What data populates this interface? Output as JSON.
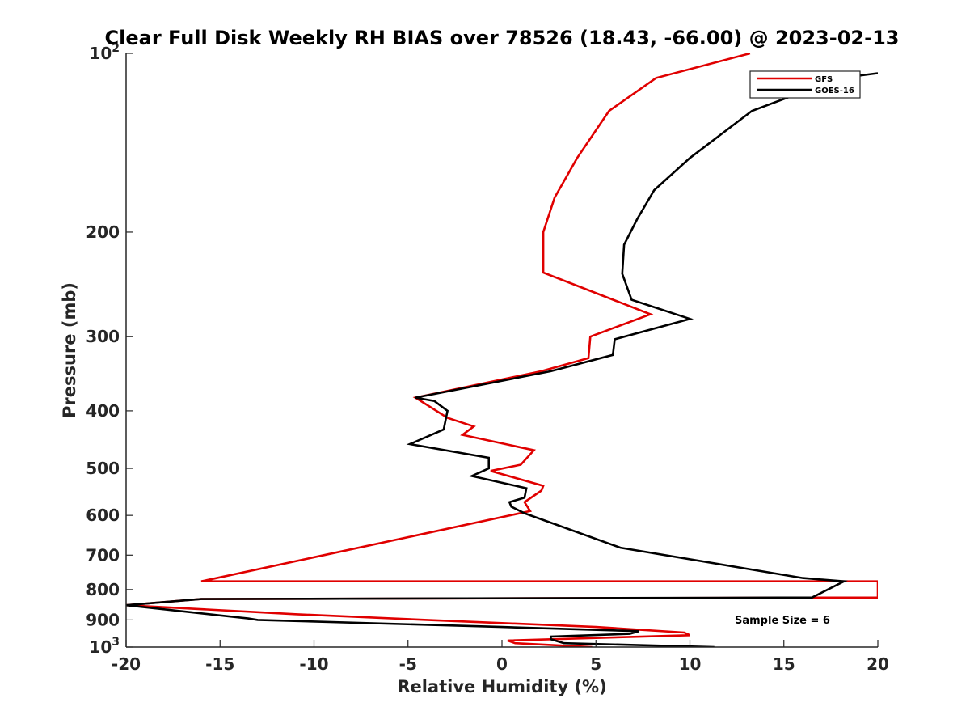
{
  "chart_data": {
    "type": "line",
    "title": "Clear Full Disk Weekly RH BIAS over 78526 (18.43, -66.00) @ 2023-02-13",
    "xlabel": "Relative Humidity (%)",
    "ylabel": "Pressure (mb)",
    "xlim": [
      -20,
      20
    ],
    "ylim": [
      100,
      1000
    ],
    "y_scale": "log",
    "y_reversed": true,
    "x_ticks": [
      "-20",
      "-15",
      "-10",
      "-5",
      "0",
      "5",
      "10",
      "15",
      "20"
    ],
    "y_ticks": [
      {
        "value": 100,
        "base": "10",
        "exp": "2"
      },
      {
        "value": 200,
        "label": "200"
      },
      {
        "value": 300,
        "label": "300"
      },
      {
        "value": 400,
        "label": "400"
      },
      {
        "value": 500,
        "label": "500"
      },
      {
        "value": 600,
        "label": "600"
      },
      {
        "value": 700,
        "label": "700"
      },
      {
        "value": 800,
        "label": "800"
      },
      {
        "value": 900,
        "label": "900"
      },
      {
        "value": 1000,
        "base": "10",
        "exp": "3"
      }
    ],
    "grid": false,
    "legend_position": "top-right",
    "annotation": "Sample Size = 6",
    "series": [
      {
        "name": "GFS",
        "color": "#e00000",
        "points": [
          [
            4.8,
            1000
          ],
          [
            0.7,
            985
          ],
          [
            0.3,
            975
          ],
          [
            10.0,
            955
          ],
          [
            9.7,
            945
          ],
          [
            5.0,
            925
          ],
          [
            -4.0,
            900
          ],
          [
            -11.0,
            880
          ],
          [
            -12.5,
            875
          ],
          [
            -20.0,
            850
          ],
          [
            -16.0,
            830
          ],
          [
            20.0,
            825
          ],
          [
            20.0,
            775
          ],
          [
            -16.0,
            775
          ],
          [
            1.5,
            590
          ],
          [
            1.2,
            570
          ],
          [
            2.1,
            545
          ],
          [
            2.2,
            535
          ],
          [
            -0.6,
            505
          ],
          [
            1.0,
            493
          ],
          [
            1.7,
            466
          ],
          [
            -2.1,
            439
          ],
          [
            -1.5,
            425
          ],
          [
            -2.9,
            411
          ],
          [
            -4.6,
            380
          ],
          [
            2.1,
            343
          ],
          [
            4.6,
            326
          ],
          [
            4.7,
            300
          ],
          [
            7.9,
            275
          ],
          [
            2.2,
            234
          ],
          [
            2.2,
            215
          ],
          [
            2.2,
            200
          ],
          [
            2.8,
            175
          ],
          [
            4.0,
            150
          ],
          [
            5.7,
            125
          ],
          [
            8.2,
            110
          ],
          [
            13.2,
            100
          ]
        ]
      },
      {
        "name": "GOES-16",
        "color": "#000000",
        "points": [
          [
            11.3,
            1000
          ],
          [
            3.3,
            985
          ],
          [
            2.6,
            970
          ],
          [
            2.6,
            960
          ],
          [
            6.8,
            950
          ],
          [
            7.3,
            940
          ],
          [
            0.0,
            925
          ],
          [
            -13.0,
            900
          ],
          [
            -13.5,
            895
          ],
          [
            -20.0,
            850
          ],
          [
            -16.0,
            830
          ],
          [
            16.5,
            825
          ],
          [
            18.2,
            775
          ],
          [
            16.0,
            765
          ],
          [
            6.3,
            680
          ],
          [
            1.2,
            595
          ],
          [
            0.5,
            580
          ],
          [
            0.4,
            570
          ],
          [
            1.2,
            560
          ],
          [
            1.3,
            540
          ],
          [
            -1.6,
            515
          ],
          [
            -0.7,
            500
          ],
          [
            -0.7,
            480
          ],
          [
            -4.9,
            455
          ],
          [
            -3.1,
            430
          ],
          [
            -2.9,
            400
          ],
          [
            -3.6,
            385
          ],
          [
            -4.6,
            380
          ],
          [
            2.6,
            343
          ],
          [
            5.9,
            322
          ],
          [
            6.0,
            303
          ],
          [
            10.0,
            280
          ],
          [
            6.9,
            260
          ],
          [
            6.4,
            235
          ],
          [
            6.5,
            210
          ],
          [
            7.2,
            190
          ],
          [
            8.1,
            170
          ],
          [
            10.0,
            150
          ],
          [
            13.3,
            125
          ],
          [
            18.0,
            110
          ],
          [
            20.0,
            108
          ]
        ]
      }
    ]
  }
}
